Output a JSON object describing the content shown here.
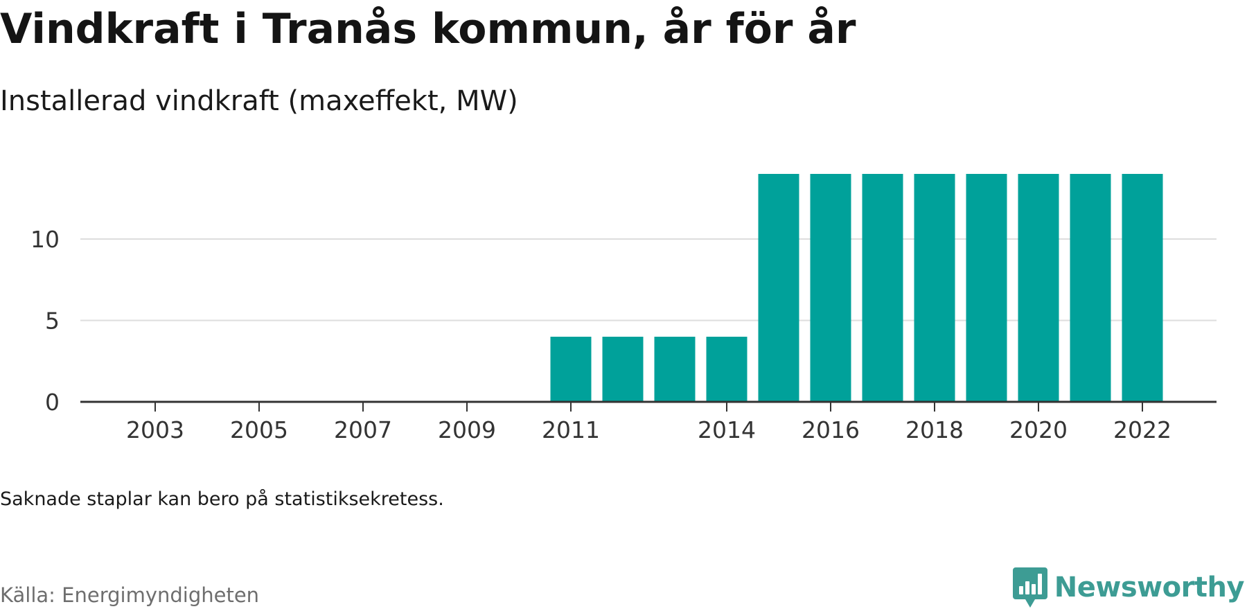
{
  "title": "Vindkraft i Tranås kommun, år för år",
  "subtitle": "Installerad vindkraft (maxeffekt, MW)",
  "note": "Saknade staplar kan bero på statistiksekretess.",
  "source": "Källa: Energimyndigheten",
  "brand": {
    "name": "Newsworthy",
    "color": "#3d9c94",
    "icon": "newsworthy-logo-icon"
  },
  "chart_data": {
    "type": "bar",
    "categories": [
      2003,
      2004,
      2005,
      2006,
      2007,
      2008,
      2009,
      2010,
      2011,
      2012,
      2013,
      2014,
      2015,
      2016,
      2017,
      2018,
      2019,
      2020,
      2021,
      2022
    ],
    "values": [
      0,
      0,
      0,
      0,
      0,
      0,
      0,
      0,
      4,
      4,
      4,
      4,
      14,
      14,
      14,
      14,
      14,
      14,
      14,
      14
    ],
    "x_tick_labels": [
      "2003",
      "2005",
      "2007",
      "2009",
      "2011",
      "2014",
      "2016",
      "2018",
      "2020",
      "2022"
    ],
    "y_ticks": [
      0,
      5,
      10
    ],
    "ylim": [
      0,
      14
    ],
    "bar_color": "#00a19a",
    "grid": true,
    "xlabel": "",
    "ylabel": ""
  }
}
